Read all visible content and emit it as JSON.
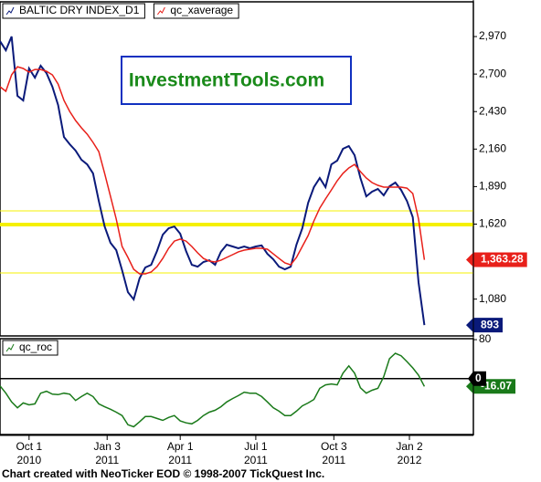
{
  "chart_data": {
    "type": "line",
    "x": [
      "2010-08-27",
      "2010-09-03",
      "2010-09-10",
      "2010-09-17",
      "2010-09-24",
      "2010-10-01",
      "2010-10-08",
      "2010-10-15",
      "2010-10-22",
      "2010-10-29",
      "2010-11-05",
      "2010-11-12",
      "2010-11-19",
      "2010-11-26",
      "2010-12-03",
      "2010-12-10",
      "2010-12-17",
      "2010-12-24",
      "2010-12-31",
      "2011-01-07",
      "2011-01-14",
      "2011-01-21",
      "2011-01-28",
      "2011-02-04",
      "2011-02-11",
      "2011-02-18",
      "2011-02-25",
      "2011-03-04",
      "2011-03-11",
      "2011-03-18",
      "2011-03-25",
      "2011-04-01",
      "2011-04-08",
      "2011-04-15",
      "2011-04-22",
      "2011-04-29",
      "2011-05-06",
      "2011-05-13",
      "2011-05-20",
      "2011-05-27",
      "2011-06-03",
      "2011-06-10",
      "2011-06-17",
      "2011-06-24",
      "2011-07-01",
      "2011-07-08",
      "2011-07-15",
      "2011-07-22",
      "2011-07-29",
      "2011-08-05",
      "2011-08-12",
      "2011-08-19",
      "2011-08-26",
      "2011-09-02",
      "2011-09-09",
      "2011-09-16",
      "2011-09-23",
      "2011-09-30",
      "2011-10-07",
      "2011-10-14",
      "2011-10-21",
      "2011-10-28",
      "2011-11-04",
      "2011-11-11",
      "2011-11-18",
      "2011-11-25",
      "2011-12-02",
      "2011-12-09",
      "2011-12-16",
      "2011-12-23",
      "2011-12-30",
      "2012-01-06",
      "2012-01-13",
      "2012-01-20"
    ],
    "xlim": [
      "2010-08-27",
      "2012-03-19"
    ],
    "xticks": [
      {
        "value": "2010-10-01",
        "label": "Oct 1",
        "year": "2010"
      },
      {
        "value": "2011-01-03",
        "label": "Jan 3",
        "year": "2011"
      },
      {
        "value": "2011-04-01",
        "label": "Apr 1",
        "year": "2011"
      },
      {
        "value": "2011-07-01",
        "label": "Jul 1",
        "year": "2011"
      },
      {
        "value": "2011-10-03",
        "label": "Oct 3",
        "year": "2011"
      },
      {
        "value": "2012-01-02",
        "label": "Jan 2",
        "year": "2012"
      }
    ],
    "watermark": "InvestmentTools.com",
    "footer": "Chart created with NeoTicker EOD © 1998-2007 TickQuest Inc.",
    "panels": [
      {
        "ylim": [
          815,
          3220
        ],
        "yticks": [
          {
            "value": 1080,
            "label": "1,080"
          },
          {
            "value": 1620,
            "label": "1,620"
          },
          {
            "value": 1890,
            "label": "1,890"
          },
          {
            "value": 2160,
            "label": "2,160"
          },
          {
            "value": 2430,
            "label": "2,430"
          },
          {
            "value": 2700,
            "label": "2,700"
          },
          {
            "value": 2970,
            "label": "2,970"
          }
        ],
        "reference_lines": [
          {
            "value": 1715,
            "color": "#f5f000",
            "width": 1
          },
          {
            "value": 1617,
            "color": "#f5f000",
            "width": 4
          },
          {
            "value": 1268,
            "color": "#f5f000",
            "width": 1
          }
        ],
        "series": [
          {
            "name": "BALTIC DRY INDEX_D1",
            "color": "#0a1a7a",
            "last_label": "893",
            "values": [
              2937,
              2871,
              2970,
              2543,
              2510,
              2740,
              2674,
              2760,
              2707,
              2609,
              2477,
              2247,
              2195,
              2149,
              2083,
              2050,
              1985,
              1787,
              1603,
              1485,
              1433,
              1288,
              1130,
              1078,
              1229,
              1308,
              1327,
              1426,
              1544,
              1590,
              1603,
              1551,
              1426,
              1327,
              1314,
              1347,
              1360,
              1327,
              1420,
              1472,
              1459,
              1446,
              1459,
              1446,
              1459,
              1466,
              1406,
              1367,
              1314,
              1295,
              1314,
              1472,
              1590,
              1774,
              1886,
              1952,
              1886,
              2050,
              2077,
              2162,
              2182,
              2116,
              1952,
              1820,
              1853,
              1873,
              1827,
              1892,
              1919,
              1866,
              1787,
              1669,
              1200,
              893
            ]
          },
          {
            "name": "qc_xaverage",
            "color": "#e8201a",
            "last_label": "1,363.28",
            "values": [
              2609,
              2576,
              2694,
              2753,
              2740,
              2714,
              2733,
              2733,
              2720,
              2694,
              2628,
              2510,
              2431,
              2366,
              2313,
              2267,
              2208,
              2142,
              1985,
              1820,
              1656,
              1459,
              1380,
              1295,
              1262,
              1262,
              1275,
              1314,
              1373,
              1446,
              1498,
              1512,
              1498,
              1459,
              1413,
              1373,
              1354,
              1347,
              1360,
              1380,
              1400,
              1420,
              1433,
              1439,
              1446,
              1446,
              1439,
              1406,
              1373,
              1341,
              1327,
              1380,
              1459,
              1538,
              1643,
              1735,
              1801,
              1866,
              1932,
              1985,
              2024,
              2050,
              1998,
              1952,
              1919,
              1899,
              1886,
              1886,
              1886,
              1886,
              1879,
              1840,
              1656,
              1363.28
            ]
          }
        ]
      },
      {
        "ylim": [
          -115,
          82
        ],
        "yticks": [
          80
        ],
        "zero_line": 0,
        "series": [
          {
            "name": "qc_roc",
            "color": "#1a7a1a",
            "last_label": "-16.07",
            "values": [
              -15,
              -30,
              -48,
              -60,
              -50,
              -54,
              -52,
              -30,
              -26,
              -32,
              -33,
              -30,
              -32,
              -45,
              -37,
              -30,
              -37,
              -52,
              -58,
              -63,
              -69,
              -76,
              -95,
              -99,
              -89,
              -78,
              -78,
              -82,
              -86,
              -80,
              -76,
              -87,
              -91,
              -93,
              -86,
              -76,
              -69,
              -65,
              -58,
              -48,
              -41,
              -35,
              -28,
              -30,
              -30,
              -37,
              -48,
              -60,
              -67,
              -76,
              -76,
              -67,
              -56,
              -50,
              -43,
              -20,
              -13,
              -11,
              -13,
              11,
              26,
              11,
              -19,
              -30,
              -24,
              -20,
              4,
              41,
              52,
              47,
              35,
              22,
              7,
              -16.07
            ]
          }
        ]
      }
    ]
  }
}
